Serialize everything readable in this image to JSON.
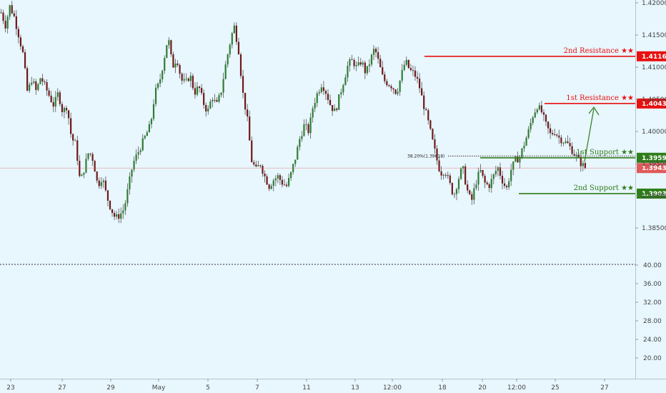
{
  "chart_data": {
    "type": "candlestick",
    "price_axis": {
      "ticks": [
        "1.42000",
        "1.41500",
        "1.41000",
        "1.40500",
        "1.40000",
        "1.39500",
        "1.39000",
        "1.38500"
      ],
      "tick_values": [
        1.42,
        1.415,
        1.41,
        1.405,
        1.4,
        1.395,
        1.39,
        1.385
      ],
      "range": [
        1.3815,
        1.4205
      ]
    },
    "indicator_axis": {
      "ticks": [
        "40.00",
        "36.00",
        "32.00",
        "28.00",
        "24.00",
        "20.00"
      ],
      "tick_values": [
        40,
        36,
        32,
        28,
        24,
        20
      ],
      "range": [
        17,
        41
      ]
    },
    "x_axis": {
      "labels": [
        "23",
        "27",
        "29",
        "May",
        "5",
        "7",
        "11",
        "13",
        "12:00",
        "18",
        "20",
        "12:00",
        "25",
        "27"
      ]
    },
    "levels": [
      {
        "label": "2nd Resistance ★★",
        "value": 1.41169,
        "price": "1.41169",
        "color": "#e81010",
        "x_start_label": "18"
      },
      {
        "label": "1st Resistance ★★",
        "value": 1.40435,
        "price": "1.40435",
        "color": "#e81010",
        "x_start_label": "25"
      },
      {
        "label": "1st Support ★★",
        "value": 1.39591,
        "price": "1.39591",
        "color": "#2e7d1a",
        "x_start_label": "20"
      },
      {
        "label": "2nd Support ★★",
        "value": 1.39034,
        "price": "1.39034",
        "color": "#2e7d1a",
        "x_start_label": "12:00"
      }
    ],
    "current_price": {
      "value": 1.39431,
      "price": "1.39431",
      "color": "#e05a5a"
    },
    "fib_level": {
      "text": "38.20%(1.39618)",
      "value": 1.39618
    },
    "candle_colors": {
      "up": "#2e7d32",
      "down": "#6d1a1a",
      "wick": "#555555"
    },
    "close_path": [
      [
        0.0,
        1.4185
      ],
      [
        0.5,
        1.4165
      ],
      [
        1.0,
        1.4195
      ],
      [
        1.5,
        1.4178
      ],
      [
        2.0,
        1.415
      ],
      [
        2.5,
        1.412
      ],
      [
        3.0,
        1.406
      ],
      [
        3.5,
        1.4082
      ],
      [
        4.0,
        1.4062
      ],
      [
        4.5,
        1.4085
      ],
      [
        5.0,
        1.407
      ],
      [
        5.5,
        1.4055
      ],
      [
        6.0,
        1.404
      ],
      [
        6.5,
        1.406
      ],
      [
        7.0,
        1.403
      ],
      [
        7.5,
        1.404
      ],
      [
        8.0,
        1.399
      ],
      [
        8.5,
        1.398
      ],
      [
        9.0,
        1.392
      ],
      [
        9.5,
        1.3945
      ],
      [
        10.0,
        1.397
      ],
      [
        10.5,
        1.3955
      ],
      [
        11.0,
        1.3915
      ],
      [
        11.5,
        1.393
      ],
      [
        12.0,
        1.39
      ],
      [
        12.5,
        1.388
      ],
      [
        13.0,
        1.3865
      ],
      [
        13.5,
        1.387
      ],
      [
        14.0,
        1.388
      ],
      [
        15.0,
        1.395
      ],
      [
        16.0,
        1.398
      ],
      [
        17.0,
        1.401
      ],
      [
        17.5,
        1.406
      ],
      [
        18.0,
        1.4075
      ],
      [
        18.5,
        1.411
      ],
      [
        19.0,
        1.4148
      ],
      [
        19.5,
        1.41
      ],
      [
        20.0,
        1.4115
      ],
      [
        20.5,
        1.408
      ],
      [
        21.0,
        1.4075
      ],
      [
        21.5,
        1.4088
      ],
      [
        22.0,
        1.406
      ],
      [
        22.5,
        1.407
      ],
      [
        23.0,
        1.4045
      ],
      [
        23.5,
        1.403
      ],
      [
        24.0,
        1.4055
      ],
      [
        24.5,
        1.404
      ],
      [
        25.0,
        1.406
      ],
      [
        25.5,
        1.41
      ],
      [
        26.0,
        1.4135
      ],
      [
        26.5,
        1.4165
      ],
      [
        27.0,
        1.413
      ],
      [
        27.5,
        1.406
      ],
      [
        28.0,
        1.402
      ],
      [
        28.5,
        1.3955
      ],
      [
        29.0,
        1.394
      ],
      [
        29.5,
        1.395
      ],
      [
        30.0,
        1.393
      ],
      [
        30.5,
        1.3915
      ],
      [
        31.0,
        1.3925
      ],
      [
        31.5,
        1.393
      ],
      [
        32.0,
        1.392
      ],
      [
        32.5,
        1.3915
      ],
      [
        33.0,
        1.3935
      ],
      [
        33.5,
        1.396
      ],
      [
        34.0,
        1.399
      ],
      [
        34.5,
        1.401
      ],
      [
        35.0,
        1.4
      ],
      [
        35.5,
        1.404
      ],
      [
        36.0,
        1.406
      ],
      [
        36.5,
        1.4075
      ],
      [
        37.0,
        1.406
      ],
      [
        37.5,
        1.404
      ],
      [
        38.0,
        1.403
      ],
      [
        38.5,
        1.4055
      ],
      [
        39.0,
        1.408
      ],
      [
        39.5,
        1.4105
      ],
      [
        40.0,
        1.411
      ],
      [
        40.5,
        1.4098
      ],
      [
        41.0,
        1.411
      ],
      [
        41.5,
        1.409
      ],
      [
        42.0,
        1.411
      ],
      [
        42.5,
        1.413
      ],
      [
        43.0,
        1.4105
      ],
      [
        43.5,
        1.408
      ],
      [
        44.0,
        1.4075
      ],
      [
        44.5,
        1.407
      ],
      [
        45.0,
        1.406
      ],
      [
        45.5,
        1.4085
      ],
      [
        46.0,
        1.411
      ],
      [
        46.5,
        1.4095
      ],
      [
        47.0,
        1.409
      ],
      [
        47.5,
        1.4075
      ],
      [
        48.0,
        1.4045
      ],
      [
        48.5,
        1.402
      ],
      [
        49.0,
        1.399
      ],
      [
        49.5,
        1.396
      ],
      [
        50.0,
        1.3935
      ],
      [
        50.5,
        1.394
      ],
      [
        51.0,
        1.392
      ],
      [
        51.5,
        1.39
      ],
      [
        52.0,
        1.3925
      ],
      [
        52.5,
        1.3945
      ],
      [
        53.0,
        1.391
      ],
      [
        53.5,
        1.389
      ],
      [
        54.0,
        1.392
      ],
      [
        54.5,
        1.394
      ],
      [
        55.0,
        1.392
      ],
      [
        55.5,
        1.3915
      ],
      [
        56.0,
        1.393
      ],
      [
        56.5,
        1.3945
      ],
      [
        57.0,
        1.3925
      ],
      [
        57.5,
        1.391
      ],
      [
        58.0,
        1.394
      ],
      [
        58.5,
        1.3955
      ],
      [
        59.0,
        1.396
      ],
      [
        59.5,
        1.398
      ],
      [
        60.0,
        1.4
      ],
      [
        60.5,
        1.4025
      ],
      [
        61.0,
        1.404
      ],
      [
        61.5,
        1.403
      ],
      [
        62.0,
        1.401
      ],
      [
        62.5,
        1.3995
      ],
      [
        63.0,
        1.4
      ],
      [
        63.5,
        1.399
      ],
      [
        64.0,
        1.3985
      ],
      [
        64.5,
        1.398
      ],
      [
        65.0,
        1.397
      ],
      [
        65.5,
        1.396
      ],
      [
        66.0,
        1.395
      ],
      [
        66.5,
        1.3943
      ]
    ]
  }
}
